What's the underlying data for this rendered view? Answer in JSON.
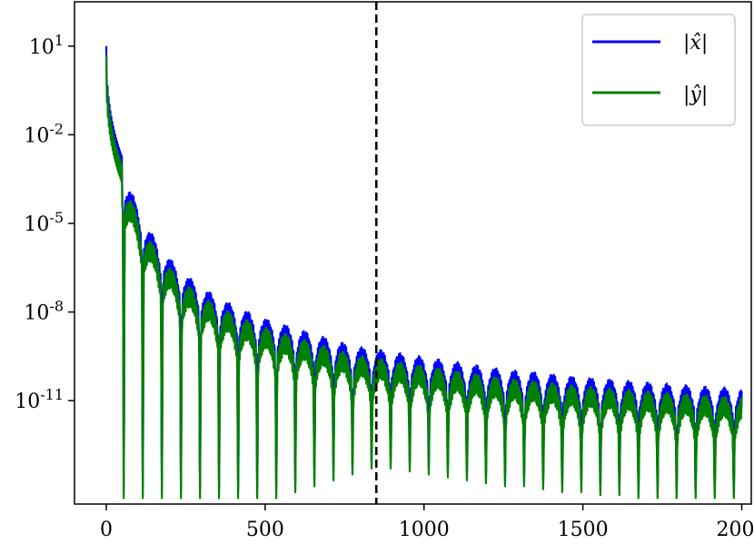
{
  "chart_data": {
    "type": "line",
    "title": "",
    "xlabel": "",
    "ylabel": "",
    "xlim": [
      -100,
      2030
    ],
    "ylim_log10": [
      -14.5,
      2.5
    ],
    "yscale": "log",
    "grid": false,
    "legend_position": "top-right",
    "x_ticks": [
      0,
      500,
      1000,
      1500,
      2000
    ],
    "x_tick_labels": [
      "0",
      "500",
      "1000",
      "1500",
      "2000"
    ],
    "y_ticks_log10": [
      1,
      -2,
      -5,
      -8,
      -11
    ],
    "y_tick_labels": [
      {
        "base": "10",
        "exp": "1"
      },
      {
        "base": "10",
        "exp": "-2"
      },
      {
        "base": "10",
        "exp": "-5"
      },
      {
        "base": "10",
        "exp": "-8"
      },
      {
        "base": "10",
        "exp": "-11"
      }
    ],
    "vline": {
      "x": 850,
      "style": "dashed",
      "color": "#000000"
    },
    "series": [
      {
        "name": "|x̂|",
        "color": "#0000ff",
        "envelope_peaks": [
          [
            0,
            1.0
          ],
          [
            60,
            -3.8
          ],
          [
            120,
            -5.3
          ],
          [
            180,
            -6.3
          ],
          [
            240,
            -7.0
          ],
          [
            300,
            -7.5
          ],
          [
            360,
            -7.9
          ],
          [
            420,
            -8.2
          ],
          [
            480,
            -8.5
          ],
          [
            540,
            -8.7
          ],
          [
            600,
            -8.9
          ],
          [
            660,
            -9.1
          ],
          [
            720,
            -9.3
          ],
          [
            780,
            -9.5
          ],
          [
            850,
            -9.6
          ],
          [
            900,
            -9.7
          ],
          [
            960,
            -9.8
          ],
          [
            1020,
            -9.9
          ],
          [
            1080,
            -10.0
          ],
          [
            1140,
            -10.1
          ],
          [
            1200,
            -10.2
          ],
          [
            1260,
            -10.3
          ],
          [
            1320,
            -10.35
          ],
          [
            1380,
            -10.4
          ],
          [
            1440,
            -10.5
          ],
          [
            1500,
            -10.55
          ],
          [
            1560,
            -10.6
          ],
          [
            1620,
            -10.65
          ],
          [
            1680,
            -10.7
          ],
          [
            1740,
            -10.75
          ],
          [
            1800,
            -10.8
          ],
          [
            1860,
            -10.85
          ],
          [
            1920,
            -10.9
          ],
          [
            1980,
            -10.9
          ]
        ],
        "envelope_troughs": [
          [
            55,
            -14.0
          ],
          [
            115,
            -14.0
          ],
          [
            175,
            -14.0
          ],
          [
            235,
            -14.0
          ],
          [
            295,
            -14.0
          ],
          [
            355,
            -14.0
          ],
          [
            415,
            -14.0
          ],
          [
            475,
            -14.0
          ],
          [
            535,
            -14.0
          ],
          [
            595,
            -13.8
          ],
          [
            655,
            -13.6
          ],
          [
            715,
            -13.4
          ],
          [
            775,
            -13.2
          ],
          [
            835,
            -13.0
          ],
          [
            895,
            -13.0
          ],
          [
            955,
            -13.1
          ],
          [
            1015,
            -13.2
          ],
          [
            1075,
            -13.3
          ],
          [
            1135,
            -13.4
          ],
          [
            1195,
            -13.5
          ],
          [
            1255,
            -13.6
          ],
          [
            1315,
            -13.6
          ],
          [
            1375,
            -13.7
          ],
          [
            1435,
            -13.8
          ],
          [
            1495,
            -13.8
          ],
          [
            1555,
            -13.9
          ],
          [
            1615,
            -13.9
          ],
          [
            1675,
            -14.0
          ],
          [
            1735,
            -14.0
          ],
          [
            1795,
            -14.0
          ],
          [
            1855,
            -14.0
          ],
          [
            1915,
            -14.0
          ],
          [
            1975,
            -14.0
          ]
        ]
      },
      {
        "name": "|ŷ|",
        "color": "#008000",
        "envelope_peaks": [
          [
            0,
            0.7
          ],
          [
            60,
            -4.1
          ],
          [
            120,
            -5.6
          ],
          [
            180,
            -6.6
          ],
          [
            240,
            -7.3
          ],
          [
            300,
            -7.8
          ],
          [
            360,
            -8.2
          ],
          [
            420,
            -8.5
          ],
          [
            480,
            -8.8
          ],
          [
            540,
            -9.0
          ],
          [
            600,
            -9.2
          ],
          [
            660,
            -9.4
          ],
          [
            720,
            -9.6
          ],
          [
            780,
            -9.8
          ],
          [
            850,
            -9.9
          ],
          [
            900,
            -10.0
          ],
          [
            960,
            -10.1
          ],
          [
            1020,
            -10.2
          ],
          [
            1080,
            -10.3
          ],
          [
            1140,
            -10.4
          ],
          [
            1200,
            -10.5
          ],
          [
            1260,
            -10.6
          ],
          [
            1320,
            -10.65
          ],
          [
            1380,
            -10.7
          ],
          [
            1440,
            -10.8
          ],
          [
            1500,
            -10.85
          ],
          [
            1560,
            -10.9
          ],
          [
            1620,
            -10.95
          ],
          [
            1680,
            -11.0
          ],
          [
            1740,
            -11.05
          ],
          [
            1800,
            -11.1
          ],
          [
            1860,
            -11.15
          ],
          [
            1920,
            -11.2
          ],
          [
            1980,
            -11.2
          ]
        ],
        "envelope_troughs": [
          [
            55,
            -14.3
          ],
          [
            115,
            -14.3
          ],
          [
            175,
            -14.3
          ],
          [
            235,
            -14.3
          ],
          [
            295,
            -14.3
          ],
          [
            355,
            -14.3
          ],
          [
            415,
            -14.3
          ],
          [
            475,
            -14.3
          ],
          [
            535,
            -14.3
          ],
          [
            595,
            -14.1
          ],
          [
            655,
            -13.9
          ],
          [
            715,
            -13.7
          ],
          [
            775,
            -13.5
          ],
          [
            835,
            -13.3
          ],
          [
            895,
            -13.3
          ],
          [
            955,
            -13.4
          ],
          [
            1015,
            -13.5
          ],
          [
            1075,
            -13.6
          ],
          [
            1135,
            -13.7
          ],
          [
            1195,
            -13.8
          ],
          [
            1255,
            -13.9
          ],
          [
            1315,
            -13.9
          ],
          [
            1375,
            -14.0
          ],
          [
            1435,
            -14.1
          ],
          [
            1495,
            -14.1
          ],
          [
            1555,
            -14.2
          ],
          [
            1615,
            -14.2
          ],
          [
            1675,
            -14.3
          ],
          [
            1735,
            -14.3
          ],
          [
            1795,
            -14.3
          ],
          [
            1855,
            -14.3
          ],
          [
            1915,
            -14.3
          ],
          [
            1975,
            -14.3
          ]
        ]
      }
    ]
  }
}
